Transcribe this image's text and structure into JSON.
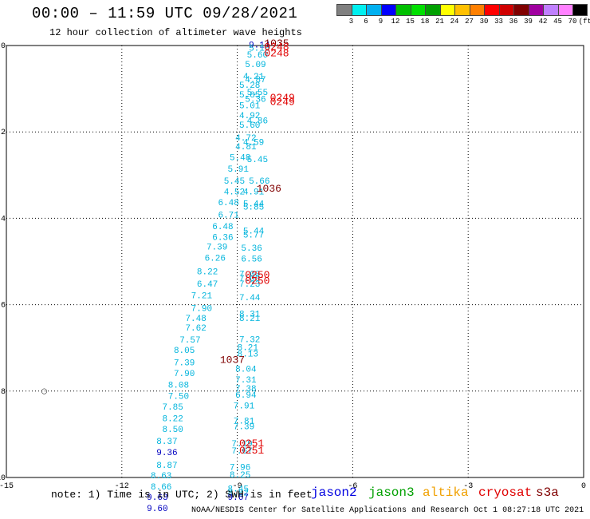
{
  "header": {
    "title": "00:00 – 11:59 UTC 09/28/2021",
    "subtitle": "12 hour collection of altimeter wave heights"
  },
  "colorbar": {
    "colors": [
      "#808080",
      "#00f0f0",
      "#00b0f0",
      "#0000ff",
      "#00c000",
      "#00e000",
      "#00a000",
      "#ffff00",
      "#ffc000",
      "#ff8000",
      "#ff0000",
      "#d00000",
      "#800000",
      "#a000a0",
      "#c080ff",
      "#ff80ff",
      "#000000"
    ],
    "labels": [
      "3",
      "6",
      "9",
      "12",
      "15",
      "18",
      "21",
      "24",
      "27",
      "30",
      "33",
      "36",
      "39",
      "42",
      "45",
      "70",
      "(ft)"
    ]
  },
  "chart_data": {
    "type": "scatter",
    "title": "12 hour collection of altimeter wave heights",
    "xlim": [
      -15,
      0
    ],
    "ylim": [
      -10,
      0
    ],
    "xticks": [
      "-15",
      "-12",
      "-9",
      "-6",
      "-3",
      "0"
    ],
    "yticks": [
      "0",
      "-2",
      "-4",
      "-6",
      "-8",
      "-10"
    ],
    "grid": true,
    "wave_heights": [
      {
        "x": -8.7,
        "y": -0.05,
        "label": "9.14"
      },
      {
        "x": -8.7,
        "y": -0.12,
        "label": "5.16"
      },
      {
        "x": -8.75,
        "y": -0.28,
        "label": "5.60"
      },
      {
        "x": -8.8,
        "y": -0.5,
        "label": "5.09"
      },
      {
        "x": -8.85,
        "y": -0.78,
        "label": "4.21"
      },
      {
        "x": -8.8,
        "y": -0.85,
        "label": "4.87"
      },
      {
        "x": -8.95,
        "y": -0.98,
        "label": "5.28"
      },
      {
        "x": -8.75,
        "y": -1.15,
        "label": "5.55"
      },
      {
        "x": -8.95,
        "y": -1.2,
        "label": "5.85"
      },
      {
        "x": -8.8,
        "y": -1.3,
        "label": "5.36"
      },
      {
        "x": -8.95,
        "y": -1.45,
        "label": "5.01"
      },
      {
        "x": -8.95,
        "y": -1.68,
        "label": "4.92"
      },
      {
        "x": -8.75,
        "y": -1.8,
        "label": "4.86"
      },
      {
        "x": -8.95,
        "y": -1.9,
        "label": "5.60"
      },
      {
        "x": -9.05,
        "y": -2.2,
        "label": "4.72"
      },
      {
        "x": -8.85,
        "y": -2.3,
        "label": "4.59"
      },
      {
        "x": -9.05,
        "y": -2.4,
        "label": "4.81"
      },
      {
        "x": -9.2,
        "y": -2.65,
        "label": "5.48"
      },
      {
        "x": -8.75,
        "y": -2.7,
        "label": "5.45"
      },
      {
        "x": -9.25,
        "y": -2.92,
        "label": "5.91"
      },
      {
        "x": -8.7,
        "y": -3.2,
        "label": "5.66"
      },
      {
        "x": -9.35,
        "y": -3.2,
        "label": "5.45"
      },
      {
        "x": -9.35,
        "y": -3.45,
        "label": "4.52"
      },
      {
        "x": -8.85,
        "y": -3.45,
        "label": "4.91"
      },
      {
        "x": -9.5,
        "y": -3.7,
        "label": "6.48"
      },
      {
        "x": -8.85,
        "y": -3.72,
        "label": "5.44"
      },
      {
        "x": -8.85,
        "y": -3.8,
        "label": "5.85"
      },
      {
        "x": -9.5,
        "y": -3.98,
        "label": "6.71"
      },
      {
        "x": -9.65,
        "y": -4.25,
        "label": "6.48"
      },
      {
        "x": -8.85,
        "y": -4.35,
        "label": "5.44"
      },
      {
        "x": -8.85,
        "y": -4.45,
        "label": "5.77"
      },
      {
        "x": -9.65,
        "y": -4.5,
        "label": "6.36"
      },
      {
        "x": -8.9,
        "y": -4.75,
        "label": "5.36"
      },
      {
        "x": -9.8,
        "y": -4.72,
        "label": "7.39"
      },
      {
        "x": -8.9,
        "y": -5.0,
        "label": "6.56"
      },
      {
        "x": -9.85,
        "y": -4.98,
        "label": "6.26"
      },
      {
        "x": -10.05,
        "y": -5.3,
        "label": "8.22"
      },
      {
        "x": -8.95,
        "y": -5.35,
        "label": "7.00"
      },
      {
        "x": -8.95,
        "y": -5.45,
        "label": "7.00"
      },
      {
        "x": -10.05,
        "y": -5.58,
        "label": "6.47"
      },
      {
        "x": -8.95,
        "y": -5.58,
        "label": "7.23"
      },
      {
        "x": -10.2,
        "y": -5.85,
        "label": "7.21"
      },
      {
        "x": -8.95,
        "y": -5.9,
        "label": "7.44"
      },
      {
        "x": -10.2,
        "y": -6.15,
        "label": "7.90"
      },
      {
        "x": -8.95,
        "y": -6.28,
        "label": "8.31"
      },
      {
        "x": -8.95,
        "y": -6.38,
        "label": "8.21"
      },
      {
        "x": -10.35,
        "y": -6.38,
        "label": "7.48"
      },
      {
        "x": -10.35,
        "y": -6.6,
        "label": "7.62"
      },
      {
        "x": -10.5,
        "y": -6.88,
        "label": "7.57"
      },
      {
        "x": -8.95,
        "y": -6.87,
        "label": "7.32"
      },
      {
        "x": -9.0,
        "y": -7.05,
        "label": "8.21"
      },
      {
        "x": -10.65,
        "y": -7.12,
        "label": "8.05"
      },
      {
        "x": -9.0,
        "y": -7.2,
        "label": "8.13"
      },
      {
        "x": -10.65,
        "y": -7.4,
        "label": "7.39"
      },
      {
        "x": -9.05,
        "y": -7.55,
        "label": "8.04"
      },
      {
        "x": -10.65,
        "y": -7.65,
        "label": "7.90"
      },
      {
        "x": -9.05,
        "y": -7.8,
        "label": "7.31"
      },
      {
        "x": -10.8,
        "y": -7.92,
        "label": "8.08"
      },
      {
        "x": -9.05,
        "y": -8.0,
        "label": "7.38"
      },
      {
        "x": -9.05,
        "y": -8.15,
        "label": "6.94"
      },
      {
        "x": -10.8,
        "y": -8.18,
        "label": "7.50"
      },
      {
        "x": -9.1,
        "y": -8.4,
        "label": "7.91"
      },
      {
        "x": -10.95,
        "y": -8.43,
        "label": "7.85"
      },
      {
        "x": -10.95,
        "y": -8.7,
        "label": "8.22"
      },
      {
        "x": -9.1,
        "y": -8.75,
        "label": "7.81"
      },
      {
        "x": -9.1,
        "y": -8.88,
        "label": "7.39"
      },
      {
        "x": -10.95,
        "y": -8.95,
        "label": "8.50"
      },
      {
        "x": -11.1,
        "y": -9.22,
        "label": "8.37"
      },
      {
        "x": -9.15,
        "y": -9.28,
        "label": "7.19"
      },
      {
        "x": -9.15,
        "y": -9.45,
        "label": "7.67"
      },
      {
        "x": -11.1,
        "y": -9.48,
        "label": "9.36"
      },
      {
        "x": -11.1,
        "y": -9.78,
        "label": "8.87"
      },
      {
        "x": -9.2,
        "y": -9.82,
        "label": "7.96"
      },
      {
        "x": -9.2,
        "y": -10.0,
        "label": "8.25"
      },
      {
        "x": -11.25,
        "y": -10.02,
        "label": "8.63"
      },
      {
        "x": -11.25,
        "y": -10.28,
        "label": "8.66"
      },
      {
        "x": -9.25,
        "y": -10.32,
        "label": "8.45"
      },
      {
        "x": -9.25,
        "y": -10.42,
        "label": "8.82"
      },
      {
        "x": -11.35,
        "y": -10.52,
        "label": "9.63"
      },
      {
        "x": -9.25,
        "y": -10.52,
        "label": "9.67"
      },
      {
        "x": -11.35,
        "y": -10.78,
        "label": "9.60"
      }
    ],
    "pass_times": [
      {
        "x": -8.3,
        "y": -0.02,
        "label": "1035",
        "satellite": "cryosat"
      },
      {
        "x": -8.3,
        "y": -0.1,
        "label": "0248",
        "satellite": "s3a"
      },
      {
        "x": -8.3,
        "y": -0.25,
        "label": "0248",
        "satellite": "s3a"
      },
      {
        "x": -8.15,
        "y": -1.28,
        "label": "0249",
        "satellite": "s3a"
      },
      {
        "x": -8.15,
        "y": -1.38,
        "label": "0249",
        "satellite": "s3a"
      },
      {
        "x": -8.5,
        "y": -3.38,
        "label": "1036",
        "satellite": "cryosat"
      },
      {
        "x": -8.8,
        "y": -5.38,
        "label": "0250",
        "satellite": "s3a"
      },
      {
        "x": -8.8,
        "y": -5.52,
        "label": "0250",
        "satellite": "s3a"
      },
      {
        "x": -9.45,
        "y": -7.35,
        "label": "1037",
        "satellite": "cryosat"
      },
      {
        "x": -8.95,
        "y": -9.28,
        "label": "0251",
        "satellite": "s3a"
      },
      {
        "x": -8.95,
        "y": -9.45,
        "label": "0251",
        "satellite": "s3a"
      }
    ],
    "markers": [
      {
        "x": -14.1,
        "y": -8.05,
        "label": "○"
      }
    ]
  },
  "note": "note: 1) Time is in UTC; 2) SWH is in feet",
  "satellites": [
    {
      "name": "jason2",
      "color": "#0000e0"
    },
    {
      "name": "jason3",
      "color": "#00a000"
    },
    {
      "name": "altika",
      "color": "#f0a000"
    },
    {
      "name": "cryosat",
      "color": "#e00000"
    },
    {
      "name": "s3a",
      "color": "#800000"
    }
  ],
  "credit": "NOAA/NESDIS Center for Satellite Applications and Research   Oct  1 08:27:18 UTC 2021"
}
